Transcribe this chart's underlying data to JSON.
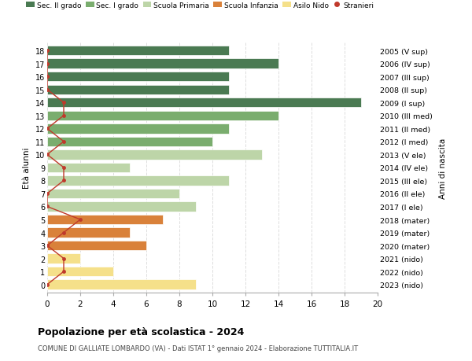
{
  "ages": [
    18,
    17,
    16,
    15,
    14,
    13,
    12,
    11,
    10,
    9,
    8,
    7,
    6,
    5,
    4,
    3,
    2,
    1,
    0
  ],
  "right_labels": [
    "2005 (V sup)",
    "2006 (IV sup)",
    "2007 (III sup)",
    "2008 (II sup)",
    "2009 (I sup)",
    "2010 (III med)",
    "2011 (II med)",
    "2012 (I med)",
    "2013 (V ele)",
    "2014 (IV ele)",
    "2015 (III ele)",
    "2016 (II ele)",
    "2017 (I ele)",
    "2018 (mater)",
    "2019 (mater)",
    "2020 (mater)",
    "2021 (nido)",
    "2022 (nido)",
    "2023 (nido)"
  ],
  "bar_values": [
    11,
    14,
    11,
    11,
    19,
    14,
    11,
    10,
    13,
    5,
    11,
    8,
    9,
    7,
    5,
    6,
    2,
    4,
    9
  ],
  "bar_colors": [
    "#4a7a52",
    "#4a7a52",
    "#4a7a52",
    "#4a7a52",
    "#4a7a52",
    "#7aad6e",
    "#7aad6e",
    "#7aad6e",
    "#bdd5a8",
    "#bdd5a8",
    "#bdd5a8",
    "#bdd5a8",
    "#bdd5a8",
    "#d9813a",
    "#d9813a",
    "#d9813a",
    "#f5e08a",
    "#f5e08a",
    "#f5e08a"
  ],
  "stranieri_x_values": [
    0,
    0,
    0,
    0,
    1,
    1,
    0,
    1,
    0,
    1,
    1,
    0,
    0,
    2,
    1,
    0,
    1,
    1,
    0
  ],
  "legend_labels": [
    "Sec. II grado",
    "Sec. I grado",
    "Scuola Primaria",
    "Scuola Infanzia",
    "Asilo Nido",
    "Stranieri"
  ],
  "legend_colors": [
    "#4a7a52",
    "#7aad6e",
    "#bdd5a8",
    "#d9813a",
    "#f5e08a",
    "#c0392b"
  ],
  "title1": "Popolazione per età scolastica - 2024",
  "title2": "COMUNE DI GALLIATE LOMBARDO (VA) - Dati ISTAT 1° gennaio 2024 - Elaborazione TUTTITALIA.IT",
  "ylabel_left": "Età alunni",
  "ylabel_right": "Anni di nascita",
  "xlim": [
    0,
    20
  ],
  "xticks": [
    0,
    2,
    4,
    6,
    8,
    10,
    12,
    14,
    16,
    18,
    20
  ],
  "grid_color": "#dddddd",
  "stranieri_color": "#c0392b",
  "bar_edge_color": "white",
  "bar_linewidth": 0.5
}
